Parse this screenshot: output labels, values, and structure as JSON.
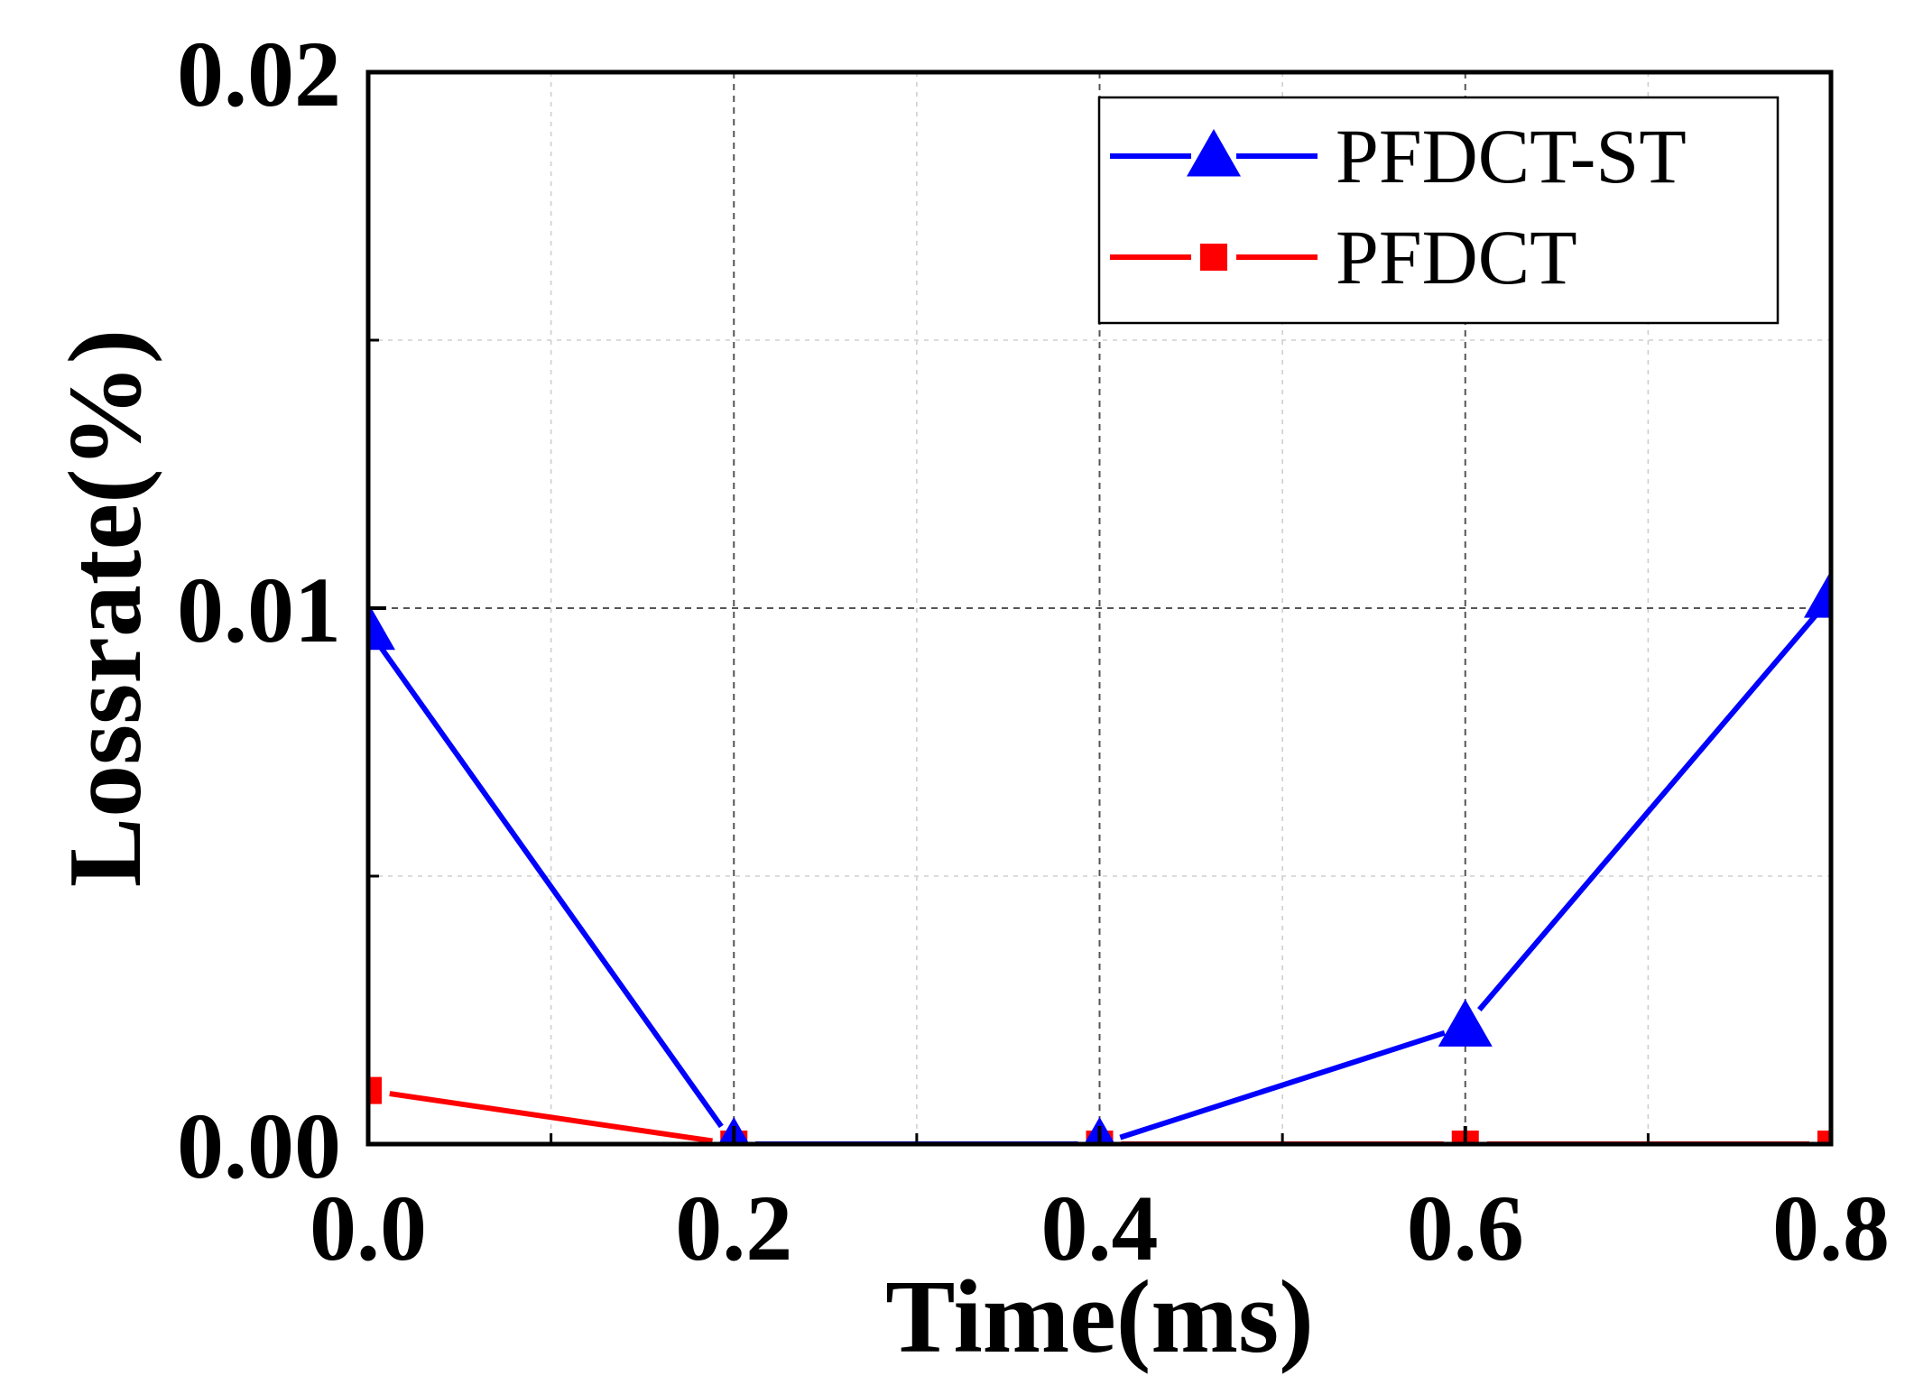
{
  "chart_data": {
    "type": "line",
    "title": "",
    "xlabel": "Time(ms)",
    "ylabel": "Lossrate(%)",
    "xlim": [
      0.0,
      0.8
    ],
    "ylim": [
      0.0,
      0.02
    ],
    "x_ticks": [
      0.0,
      0.2,
      0.4,
      0.6,
      0.8
    ],
    "x_tick_labels": [
      "0.0",
      "0.2",
      "0.4",
      "0.6",
      "0.8"
    ],
    "y_ticks": [
      0.0,
      0.01,
      0.02
    ],
    "y_tick_labels": [
      "0.00",
      "0.01",
      "0.02"
    ],
    "grid": true,
    "legend_position": "top-right",
    "x": [
      0.0,
      0.2,
      0.4,
      0.6,
      0.8
    ],
    "series": [
      {
        "name": "PFDCT-ST",
        "color": "#0000ff",
        "marker": "triangle",
        "values": [
          0.0096,
          0.0,
          0.0,
          0.0022,
          0.0102
        ]
      },
      {
        "name": "PFDCT",
        "color": "#ff0000",
        "marker": "square",
        "values": [
          0.001,
          0.0,
          0.0,
          0.0,
          0.0
        ]
      }
    ]
  }
}
